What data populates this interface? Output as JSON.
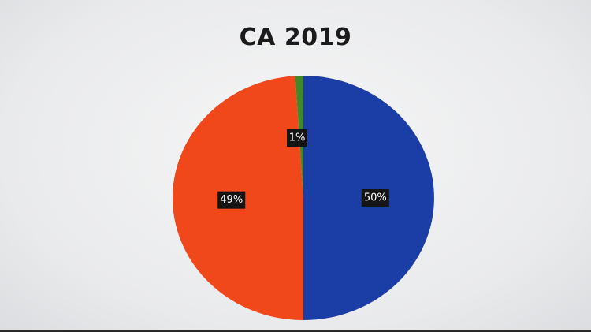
{
  "chart_data": {
    "type": "pie",
    "title": "CA 2019",
    "slices": [
      {
        "label": "50%",
        "value": 50,
        "color": "#1a3ea6"
      },
      {
        "label": "49%",
        "value": 49,
        "color": "#f0471b"
      },
      {
        "label": "1%",
        "value": 1,
        "color": "#3e8a2a"
      }
    ],
    "start_angle_deg": 0,
    "direction": "clockwise",
    "legend": "none"
  }
}
